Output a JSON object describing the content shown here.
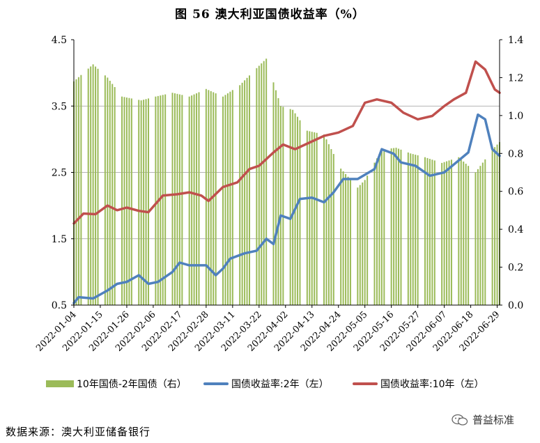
{
  "title": "图 56  澳大利亚国债收益率（%）",
  "source": "数据来源：澳大利亚储备银行",
  "watermark": "普益标准",
  "colors": {
    "bars": "#9bbb59",
    "line2y": "#4f81bd",
    "line10y": "#c0504d"
  },
  "chart_data": {
    "type": "bar+line",
    "x_ticks": [
      "2022-01-04",
      "2022-01-15",
      "2022-01-26",
      "2022-02-06",
      "2022-02-17",
      "2022-02-28",
      "2022-03-11",
      "2022-03-22",
      "2022-04-02",
      "2022-04-13",
      "2022-04-24",
      "2022-05-05",
      "2022-05-16",
      "2022-05-27",
      "2022-06-07",
      "2022-06-18",
      "2022-06-29"
    ],
    "x_range": [
      "2022-01-04",
      "2022-06-30"
    ],
    "y_left": {
      "ticks": [
        "0.5",
        "1.5",
        "2.5",
        "3.5",
        "4.5"
      ],
      "range": [
        0.5,
        4.5
      ]
    },
    "y_right": {
      "ticks": [
        "0.0",
        "0.2",
        "0.4",
        "0.6",
        "0.8",
        "1.0",
        "1.2",
        "1.4"
      ],
      "range": [
        0,
        1.4
      ]
    },
    "gridlines_y_left": [
      1.5,
      2.5,
      3.5
    ],
    "legend_position": "bottom",
    "series": [
      {
        "name": "10年国债-2年国债（右）",
        "type": "bar",
        "axis": "right",
        "points": [
          [
            "2022-01-04",
            1.18
          ],
          [
            "2022-01-12",
            1.27
          ],
          [
            "2022-01-18",
            1.2
          ],
          [
            "2022-01-24",
            1.1
          ],
          [
            "2022-02-01",
            1.08
          ],
          [
            "2022-02-07",
            1.1
          ],
          [
            "2022-02-14",
            1.12
          ],
          [
            "2022-02-21",
            1.1
          ],
          [
            "2022-02-28",
            1.14
          ],
          [
            "2022-03-07",
            1.1
          ],
          [
            "2022-03-14",
            1.16
          ],
          [
            "2022-03-21",
            1.25
          ],
          [
            "2022-03-25",
            1.3
          ],
          [
            "2022-03-31",
            1.05
          ],
          [
            "2022-04-05",
            1.03
          ],
          [
            "2022-04-11",
            0.92
          ],
          [
            "2022-04-18",
            0.9
          ],
          [
            "2022-04-25",
            0.72
          ],
          [
            "2022-05-02",
            0.62
          ],
          [
            "2022-05-05",
            0.66
          ],
          [
            "2022-05-12",
            0.82
          ],
          [
            "2022-05-18",
            0.83
          ],
          [
            "2022-05-24",
            0.8
          ],
          [
            "2022-05-30",
            0.78
          ],
          [
            "2022-06-06",
            0.75
          ],
          [
            "2022-06-13",
            0.78
          ],
          [
            "2022-06-20",
            0.7
          ],
          [
            "2022-06-27",
            0.82
          ],
          [
            "2022-06-30",
            0.86
          ]
        ]
      },
      {
        "name": "国债收益率:2年（左）",
        "type": "line",
        "axis": "left",
        "points": [
          [
            "2022-01-04",
            0.53
          ],
          [
            "2022-01-06",
            0.62
          ],
          [
            "2022-01-12",
            0.6
          ],
          [
            "2022-01-18",
            0.72
          ],
          [
            "2022-01-22",
            0.82
          ],
          [
            "2022-01-26",
            0.85
          ],
          [
            "2022-01-31",
            0.95
          ],
          [
            "2022-02-04",
            0.82
          ],
          [
            "2022-02-08",
            0.85
          ],
          [
            "2022-02-14",
            1.0
          ],
          [
            "2022-02-17",
            1.14
          ],
          [
            "2022-02-21",
            1.1
          ],
          [
            "2022-02-28",
            1.1
          ],
          [
            "2022-03-04",
            0.95
          ],
          [
            "2022-03-07",
            1.05
          ],
          [
            "2022-03-10",
            1.2
          ],
          [
            "2022-03-16",
            1.28
          ],
          [
            "2022-03-21",
            1.32
          ],
          [
            "2022-03-25",
            1.5
          ],
          [
            "2022-03-28",
            1.42
          ],
          [
            "2022-03-31",
            1.85
          ],
          [
            "2022-04-04",
            1.8
          ],
          [
            "2022-04-08",
            2.1
          ],
          [
            "2022-04-13",
            2.12
          ],
          [
            "2022-04-18",
            2.05
          ],
          [
            "2022-04-22",
            2.2
          ],
          [
            "2022-04-26",
            2.4
          ],
          [
            "2022-05-02",
            2.4
          ],
          [
            "2022-05-09",
            2.55
          ],
          [
            "2022-05-12",
            2.85
          ],
          [
            "2022-05-17",
            2.78
          ],
          [
            "2022-05-20",
            2.65
          ],
          [
            "2022-05-26",
            2.6
          ],
          [
            "2022-06-01",
            2.45
          ],
          [
            "2022-06-07",
            2.5
          ],
          [
            "2022-06-12",
            2.65
          ],
          [
            "2022-06-17",
            2.8
          ],
          [
            "2022-06-21",
            3.37
          ],
          [
            "2022-06-24",
            3.3
          ],
          [
            "2022-06-27",
            2.85
          ],
          [
            "2022-06-30",
            2.75
          ]
        ]
      },
      {
        "name": "国债收益率:10年（左）",
        "type": "line",
        "axis": "left",
        "points": [
          [
            "2022-01-04",
            1.73
          ],
          [
            "2022-01-08",
            1.88
          ],
          [
            "2022-01-13",
            1.87
          ],
          [
            "2022-01-18",
            2.0
          ],
          [
            "2022-01-22",
            1.93
          ],
          [
            "2022-01-26",
            1.97
          ],
          [
            "2022-01-31",
            1.92
          ],
          [
            "2022-02-04",
            1.9
          ],
          [
            "2022-02-10",
            2.15
          ],
          [
            "2022-02-16",
            2.17
          ],
          [
            "2022-02-21",
            2.2
          ],
          [
            "2022-02-26",
            2.15
          ],
          [
            "2022-03-01",
            2.07
          ],
          [
            "2022-03-07",
            2.28
          ],
          [
            "2022-03-13",
            2.35
          ],
          [
            "2022-03-18",
            2.55
          ],
          [
            "2022-03-22",
            2.6
          ],
          [
            "2022-03-28",
            2.8
          ],
          [
            "2022-04-01",
            2.92
          ],
          [
            "2022-04-06",
            2.85
          ],
          [
            "2022-04-12",
            2.95
          ],
          [
            "2022-04-18",
            3.05
          ],
          [
            "2022-04-24",
            3.1
          ],
          [
            "2022-04-30",
            3.2
          ],
          [
            "2022-05-05",
            3.55
          ],
          [
            "2022-05-10",
            3.6
          ],
          [
            "2022-05-16",
            3.55
          ],
          [
            "2022-05-21",
            3.4
          ],
          [
            "2022-05-27",
            3.3
          ],
          [
            "2022-06-02",
            3.35
          ],
          [
            "2022-06-07",
            3.5
          ],
          [
            "2022-06-11",
            3.6
          ],
          [
            "2022-06-16",
            3.7
          ],
          [
            "2022-06-20",
            4.17
          ],
          [
            "2022-06-24",
            4.05
          ],
          [
            "2022-06-28",
            3.75
          ],
          [
            "2022-06-30",
            3.7
          ]
        ]
      }
    ]
  }
}
